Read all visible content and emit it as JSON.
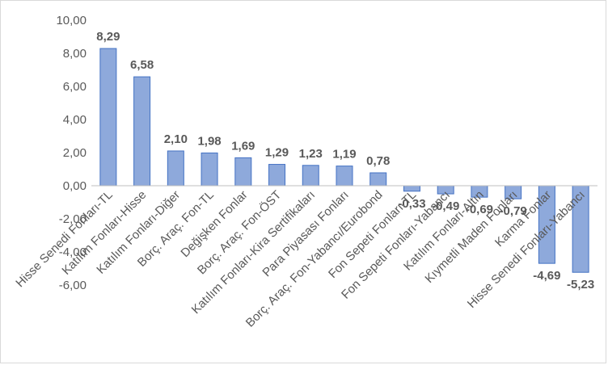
{
  "chart_data": {
    "type": "bar",
    "title": "",
    "xlabel": "",
    "ylabel": "",
    "ylim": [
      -6,
      10
    ],
    "y_ticks": [
      "10,00",
      "8,00",
      "6,00",
      "4,00",
      "2,00",
      "0,00",
      "-2,00",
      "-4,00",
      "-6,00"
    ],
    "y_tick_values": [
      10,
      8,
      6,
      4,
      2,
      0,
      -2,
      -4,
      -6
    ],
    "grid": false,
    "legend": "none",
    "bar_color": "#8EA9DB",
    "bar_border": "#4472C4",
    "categories": [
      "Hisse Senedi Fonları-TL",
      "Katılım Fonları-Hisse",
      "Katılım Fonları-Diğer",
      "Borç. Araç. Fon-TL",
      "Değişken Fonlar",
      "Borç. Araç. Fon-ÖST",
      "Katılım Fonları-Kira Sertifikaları",
      "Para Piyasası Fonları",
      "Borç. Araç. Fon-Yabancı/Eurobond",
      "Fon Sepeti Fonları-TL",
      "Fon Sepeti Fonları-Yabancı",
      "Katılım Fonları-Altın",
      "Kıymetli Maden Fonları",
      "Karma Fonlar",
      "Hisse Senedi Fonları-Yabancı"
    ],
    "values": [
      8.29,
      6.58,
      2.1,
      1.98,
      1.69,
      1.29,
      1.23,
      1.19,
      0.78,
      -0.33,
      -0.49,
      -0.69,
      -0.79,
      -4.69,
      -5.23
    ],
    "data_labels": [
      "8,29",
      "6,58",
      "2,10",
      "1,98",
      "1,69",
      "1,29",
      "1,23",
      "1,19",
      "0,78",
      "-0,33",
      "-0,49",
      "-0,69",
      "-0,79",
      "-4,69",
      "-5,23"
    ]
  }
}
